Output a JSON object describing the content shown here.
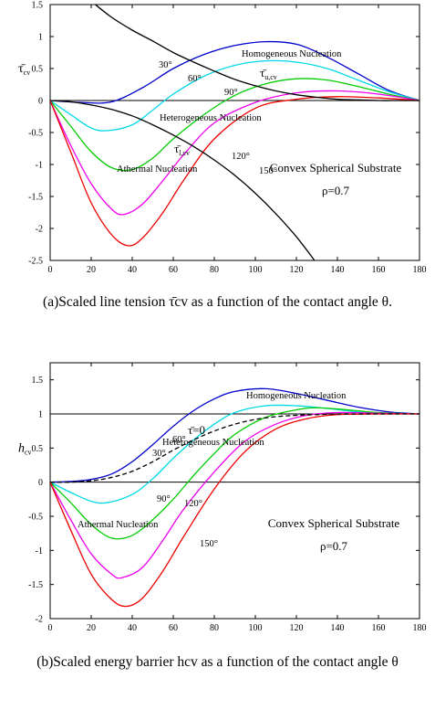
{
  "captions": {
    "a": "(a)Scaled line tension τ̄cv as a function of the contact angle θ.",
    "b": "(b)Scaled energy barrier hcv as a function of the contact angle θ"
  },
  "chart_data": [
    {
      "type": "line",
      "xlabel": "θ",
      "ylabel": "τ̄cv",
      "xlim": [
        0,
        180
      ],
      "ylim": [
        -2.5,
        1.5
      ],
      "xticks": [
        0,
        20,
        40,
        60,
        80,
        100,
        120,
        140,
        160,
        180
      ],
      "yticks": [
        -2.5,
        -2,
        -1.5,
        -1,
        -0.5,
        0,
        0.5,
        1,
        1.5
      ],
      "grid": false,
      "series": [
        {
          "name": "30°",
          "color": "#0000cc",
          "x": [
            0,
            15,
            30,
            45,
            60,
            75,
            90,
            105,
            120,
            135,
            150,
            165,
            180
          ],
          "y": [
            0,
            -0.03,
            -0.02,
            0.2,
            0.5,
            0.72,
            0.86,
            0.92,
            0.88,
            0.68,
            0.42,
            0.16,
            0
          ]
        },
        {
          "name": "60°",
          "color": "#00d8e8",
          "x": [
            0,
            10,
            20,
            28,
            40,
            50,
            60,
            75,
            90,
            105,
            120,
            135,
            150,
            165,
            180
          ],
          "y": [
            0,
            -0.22,
            -0.43,
            -0.47,
            -0.38,
            -0.15,
            0.1,
            0.38,
            0.55,
            0.62,
            0.6,
            0.5,
            0.32,
            0.14,
            0
          ]
        },
        {
          "name": "90°",
          "color": "#00cc00",
          "x": [
            0,
            10,
            20,
            30,
            40,
            50,
            60,
            75,
            90,
            105,
            120,
            135,
            150,
            165,
            180
          ],
          "y": [
            0,
            -0.4,
            -0.8,
            -1.05,
            -1.08,
            -0.9,
            -0.6,
            -0.22,
            0.08,
            0.26,
            0.34,
            0.32,
            0.22,
            0.1,
            0
          ]
        },
        {
          "name": "120°",
          "color": "#ee00ee",
          "x": [
            0,
            10,
            20,
            30,
            36,
            45,
            55,
            65,
            80,
            100,
            120,
            140,
            160,
            180
          ],
          "y": [
            0,
            -0.7,
            -1.3,
            -1.7,
            -1.78,
            -1.62,
            -1.25,
            -0.85,
            -0.35,
            -0.03,
            0.12,
            0.15,
            0.1,
            0
          ]
        },
        {
          "name": "150°",
          "color": "#ee0000",
          "x": [
            0,
            10,
            20,
            30,
            38,
            45,
            55,
            65,
            80,
            100,
            120,
            140,
            160,
            180
          ],
          "y": [
            0,
            -0.8,
            -1.6,
            -2.1,
            -2.27,
            -2.15,
            -1.75,
            -1.25,
            -0.6,
            -0.12,
            0.02,
            0.06,
            0.04,
            0
          ]
        },
        {
          "name": "τ̄u,cv",
          "color": "#000000",
          "x": [
            22,
            30,
            40,
            50,
            60,
            70,
            80,
            90,
            100,
            110,
            120,
            130,
            140,
            150,
            160,
            170,
            180
          ],
          "y": [
            1.5,
            1.3,
            1.1,
            0.93,
            0.75,
            0.6,
            0.46,
            0.33,
            0.23,
            0.15,
            0.09,
            0.05,
            0.02,
            0.01,
            0,
            0,
            0
          ]
        },
        {
          "name": "τ̄l,cv",
          "color": "#000000",
          "x": [
            0,
            10,
            20,
            30,
            40,
            50,
            60,
            70,
            80,
            90,
            100,
            110,
            120,
            130
          ],
          "y": [
            0,
            -0.02,
            -0.07,
            -0.14,
            -0.24,
            -0.38,
            -0.54,
            -0.72,
            -0.93,
            -1.17,
            -1.45,
            -1.77,
            -2.13,
            -2.55
          ]
        }
      ],
      "annotations": [
        "Homogeneous Nucleation",
        "Heterogeneous Nucleation",
        "Athermal Nucleation",
        "Convex Spherical Substrate",
        "ρ=0.7"
      ]
    },
    {
      "type": "line",
      "xlabel": "θ",
      "ylabel": "hcv",
      "xlim": [
        0,
        180
      ],
      "ylim": [
        -2,
        1.75
      ],
      "xticks": [
        0,
        20,
        40,
        60,
        80,
        100,
        120,
        140,
        160,
        180
      ],
      "yticks": [
        -2,
        -1.5,
        -1,
        -0.5,
        0,
        0.5,
        1,
        1.5
      ],
      "grid": false,
      "series": [
        {
          "name": "30°",
          "color": "#0000cc",
          "x": [
            0,
            10,
            20,
            30,
            40,
            50,
            60,
            70,
            80,
            90,
            105,
            120,
            135,
            150,
            165,
            180
          ],
          "y": [
            0,
            0.01,
            0.04,
            0.12,
            0.3,
            0.55,
            0.82,
            1.05,
            1.22,
            1.33,
            1.37,
            1.3,
            1.2,
            1.1,
            1.03,
            1
          ]
        },
        {
          "name": "60°",
          "color": "#00d8e8",
          "x": [
            0,
            10,
            20,
            28,
            40,
            50,
            60,
            70,
            80,
            90,
            105,
            120,
            135,
            150,
            165,
            180
          ],
          "y": [
            0,
            -0.15,
            -0.28,
            -0.3,
            -0.18,
            0.05,
            0.35,
            0.62,
            0.85,
            1.02,
            1.12,
            1.12,
            1.08,
            1.03,
            1.01,
            1
          ]
        },
        {
          "name": "90°",
          "color": "#00cc00",
          "x": [
            0,
            10,
            20,
            30,
            40,
            50,
            60,
            70,
            80,
            90,
            105,
            120,
            130,
            145,
            160,
            180
          ],
          "y": [
            0,
            -0.3,
            -0.62,
            -0.82,
            -0.78,
            -0.55,
            -0.25,
            0.1,
            0.42,
            0.7,
            0.95,
            1.06,
            1.09,
            1.06,
            1.02,
            1
          ]
        },
        {
          "name": "120°",
          "color": "#ee00ee",
          "x": [
            0,
            10,
            20,
            30,
            35,
            45,
            55,
            65,
            80,
            95,
            110,
            125,
            140,
            160,
            180
          ],
          "y": [
            0,
            -0.55,
            -1.05,
            -1.35,
            -1.4,
            -1.25,
            -0.85,
            -0.4,
            0.15,
            0.6,
            0.85,
            0.98,
            1.02,
            1.01,
            1
          ]
        },
        {
          "name": "150°",
          "color": "#ee0000",
          "x": [
            0,
            10,
            20,
            30,
            37,
            45,
            55,
            65,
            80,
            95,
            110,
            125,
            140,
            160,
            180
          ],
          "y": [
            0,
            -0.7,
            -1.35,
            -1.72,
            -1.82,
            -1.7,
            -1.3,
            -0.8,
            -0.1,
            0.45,
            0.78,
            0.93,
            0.99,
            1,
            1
          ]
        },
        {
          "name": "τ̄=0",
          "color": "#000000",
          "dashed": true,
          "x": [
            0,
            10,
            20,
            30,
            40,
            50,
            60,
            70,
            80,
            90,
            100,
            110,
            120,
            130,
            140,
            150,
            160,
            170,
            180
          ],
          "y": [
            0,
            0,
            0.02,
            0.07,
            0.16,
            0.3,
            0.47,
            0.62,
            0.75,
            0.85,
            0.92,
            0.96,
            0.98,
            0.99,
            1,
            1,
            1,
            1,
            1
          ]
        }
      ],
      "annotations": [
        "Homogeneous Nucleation",
        "Heterogeneous Nucleation",
        "Athermal Nucleation",
        "Convex Spherical Substrate",
        "ρ=0.7"
      ]
    }
  ]
}
